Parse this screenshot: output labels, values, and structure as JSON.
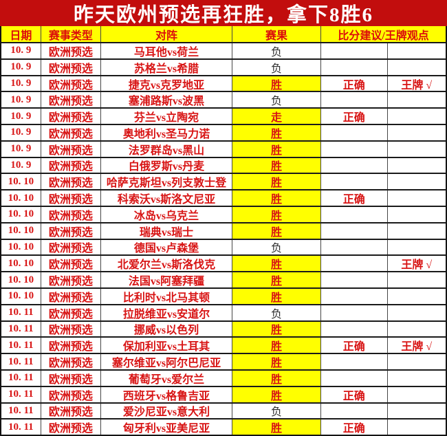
{
  "title": "昨天欧州预选再狂胜，拿下8胜6",
  "colors": {
    "title_bg": "#c20d0d",
    "title_text": "#ffffff",
    "header_bg": "#ffff00",
    "accent_red": "#d81414",
    "highlight_yellow": "#ffff00",
    "lose_text": "#2e2e2e"
  },
  "table": {
    "headers": {
      "date": "日期",
      "type": "赛事类型",
      "match": "对阵",
      "result": "赛果",
      "advice": "比分建议/王牌观点"
    },
    "rows": [
      {
        "date": "10. 9",
        "type": "欧洲预选",
        "match": "马耳他vs荷兰",
        "result": "负",
        "advice": "",
        "ace": ""
      },
      {
        "date": "10. 9",
        "type": "欧洲预选",
        "match": "苏格兰vs希腊",
        "result": "负",
        "advice": "",
        "ace": ""
      },
      {
        "date": "10. 9",
        "type": "欧洲预选",
        "match": "捷克vs克罗地亚",
        "result": "胜",
        "advice": "正确",
        "ace": "王牌 √"
      },
      {
        "date": "10. 9",
        "type": "欧洲预选",
        "match": "塞浦路斯vs波黑",
        "result": "负",
        "advice": "",
        "ace": ""
      },
      {
        "date": "10. 9",
        "type": "欧洲预选",
        "match": "芬兰vs立陶宛",
        "result": "走",
        "advice": "正确",
        "ace": ""
      },
      {
        "date": "10. 9",
        "type": "欧洲预选",
        "match": "奥地利vs圣马力诺",
        "result": "胜",
        "advice": "",
        "ace": ""
      },
      {
        "date": "10. 9",
        "type": "欧洲预选",
        "match": "法罗群岛vs黑山",
        "result": "胜",
        "advice": "",
        "ace": ""
      },
      {
        "date": "10. 9",
        "type": "欧洲预选",
        "match": "白俄罗斯vs丹麦",
        "result": "胜",
        "advice": "",
        "ace": ""
      },
      {
        "date": "10. 10",
        "type": "欧洲预选",
        "match": "哈萨克斯坦vs列支敦士登",
        "result": "胜",
        "advice": "",
        "ace": ""
      },
      {
        "date": "10. 10",
        "type": "欧洲预选",
        "match": "科索沃vs斯洛文尼亚",
        "result": "胜",
        "advice": "正确",
        "ace": ""
      },
      {
        "date": "10. 10",
        "type": "欧洲预选",
        "match": "冰岛vs乌克兰",
        "result": "胜",
        "advice": "",
        "ace": ""
      },
      {
        "date": "10. 10",
        "type": "欧洲预选",
        "match": "瑞典vs瑞士",
        "result": "胜",
        "advice": "",
        "ace": ""
      },
      {
        "date": "10. 10",
        "type": "欧洲预选",
        "match": "德国vs卢森堡",
        "result": "负",
        "advice": "",
        "ace": ""
      },
      {
        "date": "10. 10",
        "type": "欧洲预选",
        "match": "北爱尔兰vs斯洛伐克",
        "result": "胜",
        "advice": "",
        "ace": "王牌 √"
      },
      {
        "date": "10. 10",
        "type": "欧洲预选",
        "match": "法国vs阿塞拜疆",
        "result": "胜",
        "advice": "",
        "ace": ""
      },
      {
        "date": "10. 10",
        "type": "欧洲预选",
        "match": "比利时vs北马其顿",
        "result": "胜",
        "advice": "",
        "ace": ""
      },
      {
        "date": "10. 11",
        "type": "欧洲预选",
        "match": "拉脱维亚vs安道尔",
        "result": "负",
        "advice": "",
        "ace": ""
      },
      {
        "date": "10. 11",
        "type": "欧洲预选",
        "match": "挪威vs以色列",
        "result": "胜",
        "advice": "",
        "ace": ""
      },
      {
        "date": "10. 11",
        "type": "欧洲预选",
        "match": "保加利亚vs土耳其",
        "result": "胜",
        "advice": "正确",
        "ace": "王牌 √"
      },
      {
        "date": "10. 11",
        "type": "欧洲预选",
        "match": "塞尔维亚vs阿尔巴尼亚",
        "result": "胜",
        "advice": "",
        "ace": ""
      },
      {
        "date": "10. 11",
        "type": "欧洲预选",
        "match": "葡萄牙vs爱尔兰",
        "result": "胜",
        "advice": "",
        "ace": ""
      },
      {
        "date": "10. 11",
        "type": "欧洲预选",
        "match": "西班牙vs格鲁吉亚",
        "result": "胜",
        "advice": "正确",
        "ace": ""
      },
      {
        "date": "10. 11",
        "type": "欧洲预选",
        "match": "爱沙尼亚vs意大利",
        "result": "负",
        "advice": "",
        "ace": ""
      },
      {
        "date": "10. 11",
        "type": "欧洲预选",
        "match": "匈牙利vs亚美尼亚",
        "result": "胜",
        "advice": "正确",
        "ace": ""
      }
    ]
  }
}
